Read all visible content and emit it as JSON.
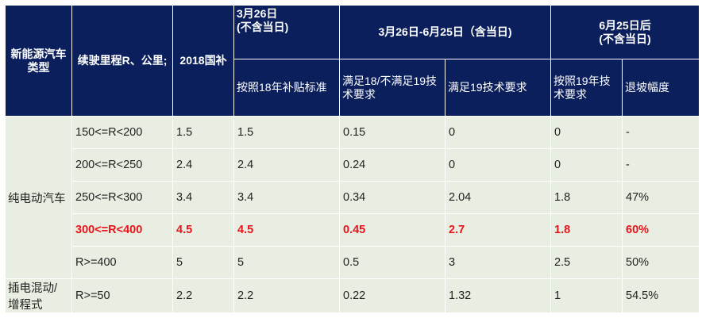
{
  "header": {
    "type": "新能源汽车类型",
    "range": "续驶里程R、公里;",
    "subsidy2018": "2018国补",
    "before": "3月26日\n(不含当日)",
    "transition": "3月26日-6月25日（含当日)",
    "after": "6月25日后\n(不含当日)",
    "sub_before": "按照18年补贴标准",
    "sub_trans_1": "满足18/不满足19技术要求",
    "sub_trans_2": "满足19技术要求",
    "sub_after_1": "按照19年技术要求",
    "sub_after_2": "退坡幅度"
  },
  "groups": {
    "bev": "纯电动汽车",
    "phev": "插电混动/增程式"
  },
  "rows": [
    {
      "range": "150<=R<200",
      "s2018": "1.5",
      "before": "1.5",
      "t18": "0.15",
      "t19": "0",
      "a19": "0",
      "decline": "-"
    },
    {
      "range": "200<=R<250",
      "s2018": "2.4",
      "before": "2.4",
      "t18": "0.24",
      "t19": "0",
      "a19": "0",
      "decline": "-"
    },
    {
      "range": "250<=R<300",
      "s2018": "3.4",
      "before": "3.4",
      "t18": "0.34",
      "t19": "2.04",
      "a19": "1.8",
      "decline": "47%"
    },
    {
      "range": "300<=R<400",
      "s2018": "4.5",
      "before": "4.5",
      "t18": "0.45",
      "t19": "2.7",
      "a19": "1.8",
      "decline": "60%"
    },
    {
      "range": "R>=400",
      "s2018": "5",
      "before": "5",
      "t18": "0.5",
      "t19": "3",
      "a19": "2.5",
      "decline": "50%"
    },
    {
      "range": "R>=50",
      "s2018": "2.2",
      "before": "2.2",
      "t18": "0.22",
      "t19": "1.32",
      "a19": "1",
      "decline": "54.5%"
    }
  ],
  "colors": {
    "header_bg": "#0b1f5c",
    "body_bg": "#e9eee2",
    "highlight": "#e8141b"
  }
}
